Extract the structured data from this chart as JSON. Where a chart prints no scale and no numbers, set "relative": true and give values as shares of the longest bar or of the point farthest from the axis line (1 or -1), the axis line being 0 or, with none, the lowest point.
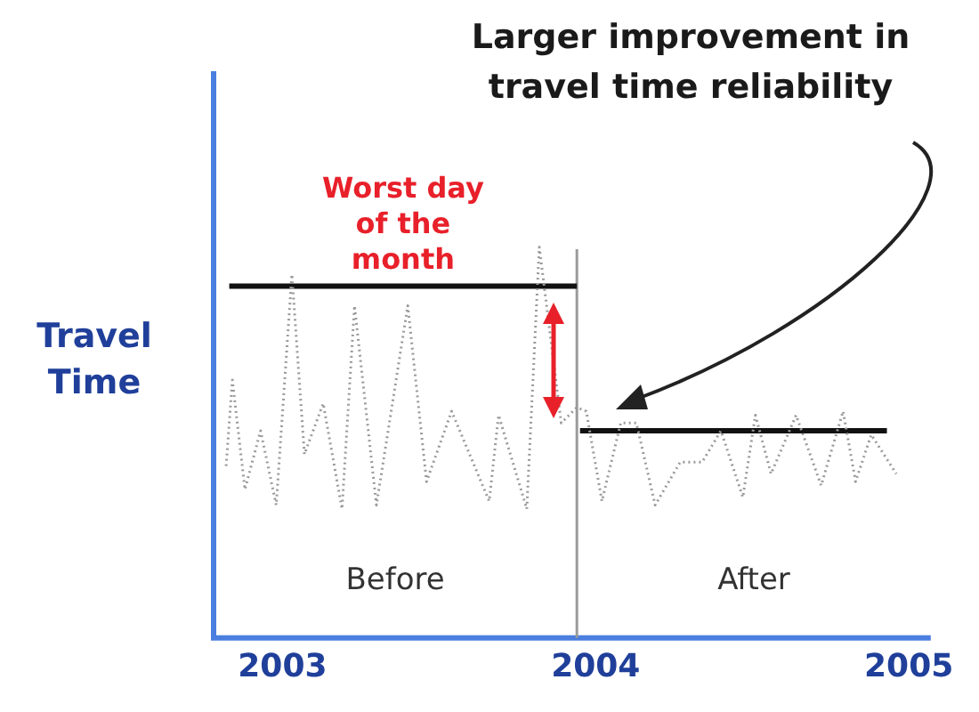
{
  "chart_data": {
    "type": "line",
    "relative": true,
    "ylabel": "Travel Time",
    "xlim": [
      2002.78,
      2005.07
    ],
    "xticks": [
      2003,
      2004,
      2005
    ],
    "grid": false,
    "legend": false,
    "marker": "none",
    "series": [
      {
        "color": "#9a9a9a",
        "line_style": "dotted",
        "x": [
          2002.82,
          2002.84,
          2002.88,
          2002.93,
          2002.98,
          2003.03,
          2003.07,
          2003.13,
          2003.19,
          2003.23,
          2003.3,
          2003.4,
          2003.46,
          2003.54,
          2003.66,
          2003.69,
          2003.78,
          2003.82,
          2003.89,
          2003.94,
          2003.97,
          2004.02,
          2004.08,
          2004.13,
          2004.19,
          2004.27,
          2004.34,
          2004.4,
          2004.47,
          2004.51,
          2004.56,
          2004.64,
          2004.72,
          2004.79,
          2004.83,
          2004.88,
          2004.96
        ],
        "values": [
          0.44,
          0.66,
          0.38,
          0.53,
          0.34,
          0.93,
          0.47,
          0.6,
          0.33,
          0.85,
          0.34,
          0.85,
          0.4,
          0.58,
          0.35,
          0.57,
          0.33,
          1.0,
          0.55,
          0.59,
          0.58,
          0.35,
          0.55,
          0.55,
          0.34,
          0.45,
          0.45,
          0.53,
          0.36,
          0.57,
          0.42,
          0.57,
          0.39,
          0.58,
          0.4,
          0.52,
          0.42
        ]
      },
      {
        "type": "line",
        "color": "#111111",
        "line_style": "solid",
        "x": [
          2002.83,
          2003.94
        ],
        "values": [
          0.9,
          0.9
        ]
      },
      {
        "type": "line",
        "color": "#111111",
        "line_style": "solid",
        "x": [
          2003.95,
          2004.93
        ],
        "values": [
          0.53,
          0.53
        ]
      }
    ],
    "ref_lines": [
      {
        "axis": "x",
        "value": 2003.94,
        "color": "#9a9a9a"
      }
    ],
    "annotations": [
      "Larger improvement in travel time reliability",
      "Worst day of the month",
      "Before",
      "After"
    ]
  }
}
